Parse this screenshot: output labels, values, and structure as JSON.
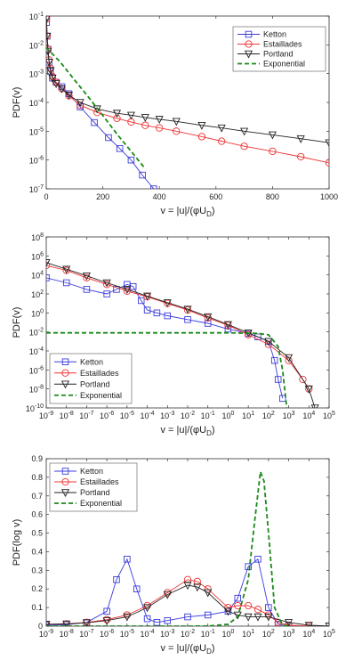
{
  "legend_labels": {
    "ketton": "Ketton",
    "estaillades": "Estaillades",
    "portland": "Portland",
    "exponential": "Exponential"
  },
  "colors": {
    "ketton": "#3b3bdd",
    "estaillades": "#ee3333",
    "portland": "#222222",
    "exponential": "#1a8a1a"
  },
  "chart_data": [
    {
      "type": "line",
      "ylabel": "PDF(v)",
      "xlabel": "v = |u|/(φU_D)",
      "xscale": "linear",
      "yscale": "log",
      "xlim": [
        0,
        1000
      ],
      "ylim": [
        1e-07,
        0.1
      ],
      "xticks": [
        0,
        200,
        400,
        600,
        800,
        1000
      ],
      "ytick_exponents": [
        -7,
        -6,
        -5,
        -4,
        -3,
        -2,
        -1
      ],
      "legend_position": "top-right",
      "series": [
        {
          "name": "Ketton",
          "marker": "square",
          "x": [
            1,
            3,
            6,
            10,
            15,
            22,
            35,
            55,
            80,
            120,
            170,
            220,
            260,
            300,
            340,
            380
          ],
          "y": [
            0.06,
            0.02,
            0.007,
            0.0025,
            0.0012,
            0.0007,
            0.0005,
            0.00035,
            0.0002,
            7e-05,
            2e-05,
            6e-06,
            2.5e-06,
            1e-06,
            3e-07,
            1e-07
          ]
        },
        {
          "name": "Estaillades",
          "marker": "circle",
          "x": [
            1,
            3,
            6,
            10,
            15,
            22,
            35,
            55,
            80,
            120,
            180,
            250,
            300,
            350,
            400,
            460,
            550,
            620,
            700,
            800,
            900,
            1000
          ],
          "y": [
            0.08,
            0.02,
            0.007,
            0.003,
            0.0015,
            0.0008,
            0.0005,
            0.0003,
            0.00017,
            8e-05,
            4.5e-05,
            2.8e-05,
            2.1e-05,
            1.6e-05,
            1.3e-05,
            1e-05,
            6.5e-06,
            4.5e-06,
            3e-06,
            2e-06,
            1.3e-06,
            8e-07
          ]
        },
        {
          "name": "Portland",
          "marker": "triangle-down",
          "x": [
            1,
            3,
            6,
            10,
            15,
            22,
            35,
            55,
            80,
            120,
            180,
            250,
            300,
            350,
            400,
            460,
            550,
            620,
            700,
            800,
            900,
            1000
          ],
          "y": [
            0.08,
            0.02,
            0.006,
            0.0025,
            0.0013,
            0.0007,
            0.00045,
            0.0003,
            0.00018,
            0.0001,
            6e-05,
            4.2e-05,
            3.6e-05,
            3e-05,
            2.6e-05,
            2.2e-05,
            1.6e-05,
            1.3e-05,
            1e-05,
            7.5e-06,
            5.5e-06,
            4e-06
          ]
        },
        {
          "name": "Exponential",
          "marker": "none",
          "dashed": true,
          "x": [
            0,
            50,
            100,
            150,
            200,
            250,
            300,
            350
          ],
          "y": [
            0.008,
            0.0025,
            0.0006,
            0.00015,
            3.5e-05,
            8e-06,
            2e-06,
            5e-07
          ]
        }
      ]
    },
    {
      "type": "line",
      "ylabel": "PDF(v)",
      "xlabel": "v = |u|/(φU_D)",
      "xscale": "log",
      "yscale": "log",
      "xlim": [
        1e-09,
        100000.0
      ],
      "ylim": [
        1e-10,
        100000000.0
      ],
      "xtick_exponents": [
        -9,
        -8,
        -7,
        -6,
        -5,
        -4,
        -3,
        -2,
        -1,
        0,
        1,
        2,
        3,
        4,
        5
      ],
      "ytick_exponents": [
        -10,
        -8,
        -6,
        -4,
        -2,
        0,
        2,
        4,
        6,
        8
      ],
      "legend_position": "bottom-left",
      "series": [
        {
          "name": "Ketton",
          "marker": "square",
          "x": [
            1e-09,
            1e-08,
            1e-07,
            1e-06,
            3e-06,
            1e-05,
            2e-05,
            5e-05,
            0.0001,
            0.0003,
            0.001,
            0.01,
            0.1,
            1,
            10,
            30,
            100,
            200,
            300,
            500
          ],
          "y": [
            5000,
            1500,
            300,
            100,
            300,
            1000,
            600,
            20,
            2,
            1,
            0.5,
            0.2,
            0.08,
            0.02,
            0.007,
            0.003,
            0.001,
            1e-05,
            1e-07,
            1e-09
          ]
        },
        {
          "name": "Estaillades",
          "marker": "circle",
          "x": [
            1e-09,
            1e-08,
            1e-07,
            1e-06,
            1e-05,
            0.0001,
            0.001,
            0.01,
            0.1,
            1,
            10,
            100,
            1000,
            5000,
            10000
          ],
          "y": [
            100000,
            30000,
            5000,
            1000,
            200,
            50,
            10,
            2,
            0.3,
            0.05,
            0.005,
            0.0005,
            1e-05,
            1e-07,
            1e-08
          ]
        },
        {
          "name": "Portland",
          "marker": "triangle-down",
          "x": [
            1e-09,
            1e-08,
            1e-07,
            1e-06,
            1e-05,
            0.0001,
            0.001,
            0.01,
            0.1,
            1,
            10,
            100,
            1000,
            10000,
            20000
          ],
          "y": [
            200000,
            40000,
            8000,
            1500,
            300,
            60,
            12,
            2.5,
            0.4,
            0.06,
            0.008,
            0.001,
            2e-05,
            1e-08,
            1e-10
          ]
        },
        {
          "name": "Exponential",
          "marker": "none",
          "dashed": true,
          "x": [
            1e-09,
            0.001,
            1,
            30,
            100,
            300,
            500,
            800
          ],
          "y": [
            0.008,
            0.008,
            0.008,
            0.007,
            0.005,
            0.0003,
            1e-06,
            1e-10
          ]
        }
      ]
    },
    {
      "type": "line",
      "ylabel": "PDF(log v)",
      "xlabel": "v = |u|/(φU_D)",
      "xscale": "log",
      "yscale": "linear",
      "xlim": [
        1e-09,
        100000.0
      ],
      "ylim": [
        0,
        0.9
      ],
      "xtick_exponents": [
        -9,
        -8,
        -7,
        -6,
        -5,
        -4,
        -3,
        -2,
        -1,
        0,
        1,
        2,
        3,
        4,
        5
      ],
      "yticks": [
        0,
        0.1,
        0.2,
        0.3,
        0.4,
        0.5,
        0.6,
        0.7,
        0.8,
        0.9
      ],
      "legend_position": "top-left",
      "series": [
        {
          "name": "Ketton",
          "marker": "square",
          "x": [
            1e-09,
            1e-08,
            1e-07,
            1e-06,
            3e-06,
            1e-05,
            3e-05,
            0.0001,
            0.0003,
            0.001,
            0.01,
            0.1,
            1,
            3,
            10,
            30,
            100,
            300,
            1000
          ],
          "y": [
            0.005,
            0.008,
            0.02,
            0.08,
            0.25,
            0.36,
            0.2,
            0.04,
            0.02,
            0.03,
            0.05,
            0.06,
            0.08,
            0.15,
            0.32,
            0.36,
            0.1,
            0.01,
            0.002
          ]
        },
        {
          "name": "Estaillades",
          "marker": "circle",
          "x": [
            1e-09,
            1e-08,
            1e-07,
            1e-06,
            1e-05,
            0.0001,
            0.001,
            0.01,
            0.03,
            0.1,
            1,
            3,
            10,
            30,
            100,
            300,
            1000,
            10000.0
          ],
          "y": [
            0.01,
            0.012,
            0.02,
            0.035,
            0.06,
            0.11,
            0.18,
            0.25,
            0.24,
            0.2,
            0.1,
            0.11,
            0.11,
            0.09,
            0.06,
            0.02,
            0.005,
            0.001
          ]
        },
        {
          "name": "Portland",
          "marker": "triangle-down",
          "x": [
            1e-09,
            1e-08,
            1e-07,
            1e-06,
            1e-05,
            0.0001,
            0.001,
            0.01,
            0.03,
            0.1,
            1,
            3,
            10,
            30,
            100,
            1000,
            10000.0,
            100000.0
          ],
          "y": [
            0.01,
            0.012,
            0.018,
            0.03,
            0.05,
            0.1,
            0.17,
            0.22,
            0.21,
            0.18,
            0.08,
            0.06,
            0.05,
            0.05,
            0.05,
            0.02,
            0.005,
            0.001
          ]
        },
        {
          "name": "Exponential",
          "marker": "none",
          "dashed": true,
          "x": [
            1e-09,
            0.01,
            0.1,
            1,
            3,
            10,
            20,
            40,
            60,
            100,
            200,
            500,
            1000
          ],
          "y": [
            0,
            0,
            0.0005,
            0.01,
            0.05,
            0.25,
            0.55,
            0.83,
            0.78,
            0.5,
            0.1,
            0.005,
            0
          ]
        }
      ]
    }
  ]
}
